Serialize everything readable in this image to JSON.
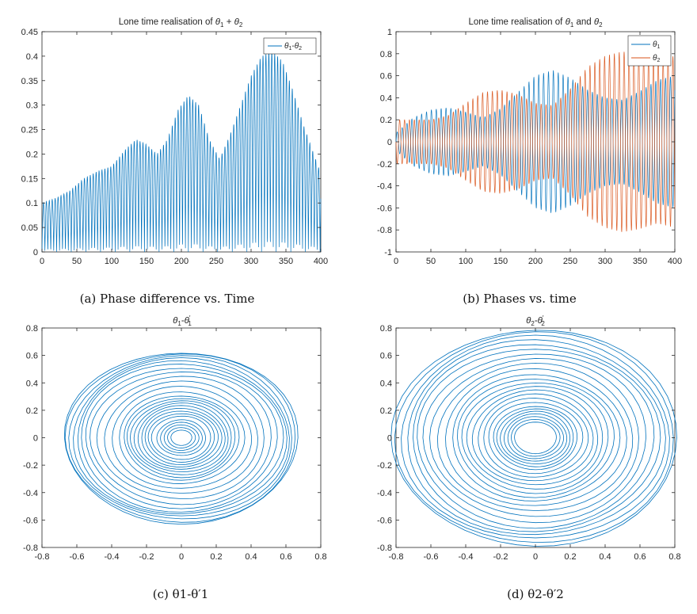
{
  "colors": {
    "blue": "#0072BD",
    "orange": "#D95319"
  },
  "captions": {
    "a": "(a) Phase difference vs. Time",
    "b": "(b) Phases vs. time",
    "c": "(c) θ1-θ′1",
    "d": "(d) θ2-θ′2"
  },
  "chart_data": [
    {
      "type": "line",
      "title": "Lone time realisation of θ1 + θ2",
      "xlim": [
        0,
        400
      ],
      "ylim": [
        0,
        0.45
      ],
      "xticks": [
        0,
        50,
        100,
        150,
        200,
        250,
        300,
        350,
        400
      ],
      "yticks": [
        0,
        0.05,
        0.1,
        0.15,
        0.2,
        0.25,
        0.3,
        0.35,
        0.4,
        0.45
      ],
      "legend": "top-right",
      "series": [
        {
          "name": "θ1-θ2",
          "color": "#0072BD",
          "envelope_x": [
            0,
            20,
            40,
            60,
            80,
            100,
            120,
            135,
            150,
            165,
            180,
            195,
            210,
            225,
            240,
            255,
            270,
            285,
            300,
            315,
            330,
            345,
            360,
            375,
            390,
            400
          ],
          "envelope_upper": [
            0.1,
            0.11,
            0.125,
            0.15,
            0.165,
            0.175,
            0.21,
            0.23,
            0.22,
            0.2,
            0.23,
            0.29,
            0.32,
            0.3,
            0.23,
            0.19,
            0.24,
            0.3,
            0.36,
            0.4,
            0.41,
            0.39,
            0.33,
            0.26,
            0.2,
            0.16
          ],
          "envelope_lower": [
            0.0,
            0.0,
            0.0,
            0.0,
            0.0,
            0.0,
            0.0,
            0.0,
            0.0,
            0.0,
            0.0,
            0.0,
            0.0,
            0.0,
            0.0,
            0.0,
            0.0,
            0.0,
            0.0,
            0.0,
            0.0,
            0.0,
            0.0,
            0.0,
            0.0,
            0.0
          ],
          "oscillation_period": 4.2
        }
      ]
    },
    {
      "type": "line",
      "title": "Lone time realisation of θ1 and θ2",
      "xlim": [
        0,
        400
      ],
      "ylim": [
        -1,
        1
      ],
      "xticks": [
        0,
        50,
        100,
        150,
        200,
        250,
        300,
        350,
        400
      ],
      "yticks": [
        -1,
        -0.8,
        -0.6,
        -0.4,
        -0.2,
        0,
        0.2,
        0.4,
        0.6,
        0.8,
        1
      ],
      "legend": "top-right",
      "series": [
        {
          "name": "θ1",
          "color": "#0072BD",
          "envelope_x": [
            0,
            25,
            50,
            75,
            100,
            125,
            150,
            175,
            200,
            225,
            250,
            275,
            300,
            325,
            350,
            375,
            400
          ],
          "amplitude": [
            0.08,
            0.22,
            0.29,
            0.31,
            0.27,
            0.22,
            0.3,
            0.45,
            0.6,
            0.65,
            0.58,
            0.47,
            0.4,
            0.38,
            0.46,
            0.56,
            0.6
          ],
          "oscillation_period": 7.0
        },
        {
          "name": "θ2",
          "color": "#D95319",
          "envelope_x": [
            0,
            25,
            50,
            75,
            100,
            125,
            150,
            175,
            200,
            225,
            250,
            275,
            300,
            325,
            350,
            375,
            400
          ],
          "amplitude": [
            0.2,
            0.2,
            0.2,
            0.24,
            0.35,
            0.45,
            0.47,
            0.43,
            0.35,
            0.33,
            0.48,
            0.68,
            0.78,
            0.82,
            0.79,
            0.74,
            0.78
          ],
          "oscillation_period": 7.0
        }
      ]
    },
    {
      "type": "line",
      "title": "θ1-θ′1",
      "xlim": [
        -0.8,
        0.8
      ],
      "ylim": [
        -0.8,
        0.8
      ],
      "xticks": [
        -0.8,
        -0.6,
        -0.4,
        -0.2,
        0,
        0.2,
        0.4,
        0.6,
        0.8
      ],
      "yticks": [
        -0.8,
        -0.6,
        -0.4,
        -0.2,
        0,
        0.2,
        0.4,
        0.6,
        0.8
      ],
      "series": [
        {
          "name": "θ1-θ′1",
          "color": "#0072BD",
          "ring_radii": [
            0.06,
            0.08,
            0.1,
            0.12,
            0.14,
            0.17,
            0.19,
            0.21,
            0.23,
            0.25,
            0.27,
            0.29,
            0.31,
            0.33,
            0.36,
            0.4,
            0.44,
            0.48,
            0.52,
            0.55,
            0.58,
            0.6,
            0.62,
            0.64,
            0.66,
            0.67
          ],
          "aspect_y_over_x": 0.93
        }
      ]
    },
    {
      "type": "line",
      "title": "θ2-θ′2",
      "xlim": [
        -0.8,
        0.8
      ],
      "ylim": [
        -0.8,
        0.8
      ],
      "xticks": [
        -0.8,
        -0.6,
        -0.4,
        -0.2,
        0,
        0.2,
        0.4,
        0.6,
        0.8
      ],
      "yticks": [
        -0.8,
        -0.6,
        -0.4,
        -0.2,
        0,
        0.2,
        0.4,
        0.6,
        0.8
      ],
      "series": [
        {
          "name": "θ2-θ′2",
          "color": "#0072BD",
          "ring_radii": [
            0.12,
            0.14,
            0.16,
            0.18,
            0.2,
            0.22,
            0.24,
            0.27,
            0.3,
            0.33,
            0.36,
            0.39,
            0.42,
            0.45,
            0.48,
            0.52,
            0.56,
            0.6,
            0.64,
            0.68,
            0.71,
            0.74,
            0.77,
            0.8,
            0.82
          ],
          "aspect_y_over_x": 0.96
        }
      ]
    }
  ]
}
